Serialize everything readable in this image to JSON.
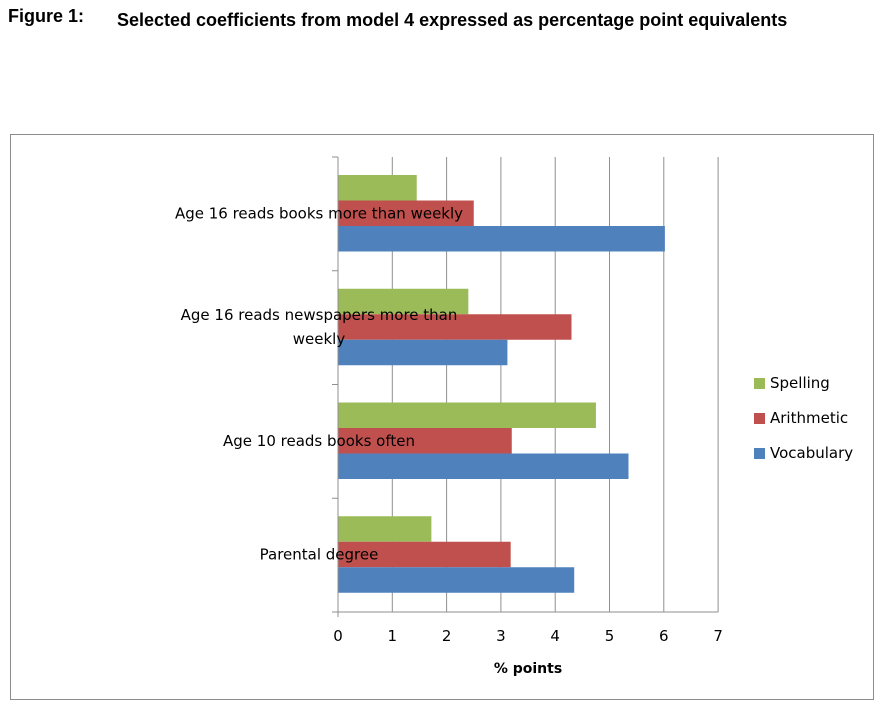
{
  "figure": {
    "label": "Figure 1:",
    "title": "Selected coefficients from model 4 expressed as percentage point equivalents"
  },
  "chart_data": {
    "type": "bar",
    "orientation": "horizontal",
    "categories": [
      "Age 16 reads books more than weekly",
      "Age 16 reads newspapers more than weekly",
      "Age 10 reads books often",
      "Parental degree"
    ],
    "category_lines": [
      [
        "Age 16 reads books more than weekly"
      ],
      [
        "Age 16 reads newspapers more than",
        "weekly"
      ],
      [
        "Age 10 reads books often"
      ],
      [
        "Parental degree"
      ]
    ],
    "series": [
      {
        "name": "Spelling",
        "color": "#9bbb59",
        "values": [
          1.45,
          2.4,
          4.75,
          1.72
        ]
      },
      {
        "name": "Arithmetic",
        "color": "#c0504d",
        "values": [
          2.5,
          4.3,
          3.2,
          3.18
        ]
      },
      {
        "name": "Vocabulary",
        "color": "#4f81bd",
        "values": [
          6.02,
          3.12,
          5.35,
          4.35
        ]
      }
    ],
    "xlabel": "% points",
    "xlim": [
      0,
      7
    ],
    "xticks": [
      "0",
      "1",
      "2",
      "3",
      "4",
      "5",
      "6",
      "7"
    ],
    "grid": true,
    "legend_position": "right"
  }
}
